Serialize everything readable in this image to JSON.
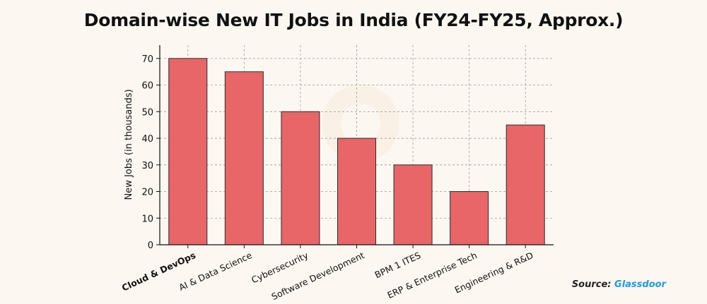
{
  "chart_data": {
    "type": "bar",
    "title": "Domain-wise New IT Jobs in India (FY24-FY25, Approx.)",
    "xlabel": "",
    "ylabel": "New Jobs (in thousands)",
    "categories": [
      "Cloud & DevOps",
      "AI & Data Science",
      "Cybersecurity",
      "Software Development",
      "BPM 1 ITES",
      "ERP & Enterprise Tech",
      "Engineering & R&D"
    ],
    "values": [
      70,
      65,
      50,
      40,
      30,
      20,
      45
    ],
    "ylim": [
      0,
      75
    ],
    "yticks": [
      0,
      10,
      20,
      30,
      40,
      50,
      60,
      70
    ],
    "grid": true,
    "bar_color": "#e96668",
    "bar_edge_color": "#2b2b2b"
  },
  "source": {
    "label": "Source:",
    "brand": "Glassdoor",
    "brand_color": "#1e9be8"
  }
}
